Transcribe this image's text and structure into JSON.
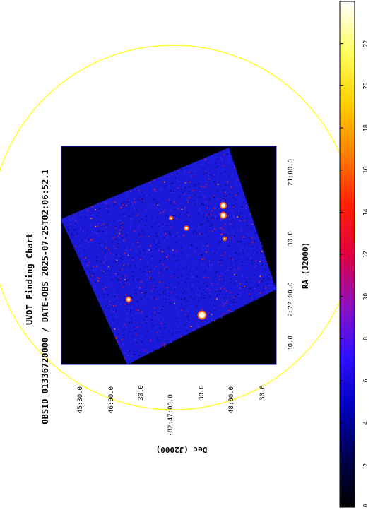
{
  "title": {
    "line1": "UVOT Finding Chart",
    "line2": "OBSID 01336720000 / DATE-OBS 2025-07-25T02:06:52.1"
  },
  "axes": {
    "ra_label": "RA (J2000)",
    "dec_label": "Dec (J2000)",
    "ra_ticks": [
      "30.0",
      "2:22:00.0",
      "30.0",
      "21:00.0"
    ],
    "dec_ticks": [
      "45:30.0",
      "46:00.0",
      "30.0",
      "-82:47:00.0",
      "30.0",
      "48:00.0",
      "30.0"
    ]
  },
  "colorbar": {
    "ticks": [
      "0",
      "2",
      "4",
      "6",
      "8",
      "10",
      "12",
      "14",
      "16",
      "18",
      "20",
      "22"
    ],
    "colormap": [
      "#000000",
      "#000050",
      "#0000c0",
      "#3010ff",
      "#9010c0",
      "#e00040",
      "#ff2000",
      "#ff8000",
      "#ffd000",
      "#ffff60",
      "#ffffff"
    ]
  },
  "colors": {
    "region_circle": "#ffff33",
    "frame": "#1a1acc",
    "background": "#000000"
  }
}
